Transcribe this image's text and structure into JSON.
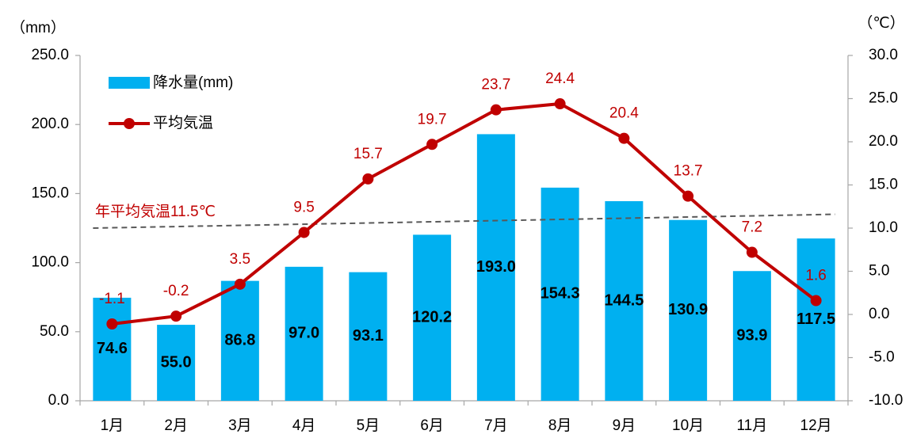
{
  "chart_data": {
    "type": "bar_line",
    "y_axis_label": "（mm）",
    "y2_axis_label": "（℃）",
    "categories": [
      "1月",
      "2月",
      "3月",
      "4月",
      "5月",
      "6月",
      "7月",
      "8月",
      "9月",
      "10月",
      "11月",
      "12月"
    ],
    "series": [
      {
        "name": "降水量(mm)",
        "type": "bar",
        "color": "#00b0f0",
        "axis": "y",
        "values": [
          74.6,
          55.0,
          86.8,
          97.0,
          93.1,
          120.2,
          193.0,
          154.3,
          144.5,
          130.9,
          93.9,
          117.5
        ],
        "value_labels": [
          "74.6",
          "55.0",
          "86.8",
          "97.0",
          "93.1",
          "120.2",
          "193.0",
          "154.3",
          "144.5",
          "130.9",
          "93.9",
          "117.5"
        ]
      },
      {
        "name": "平均気温",
        "type": "line",
        "color": "#c00000",
        "axis": "y2",
        "values": [
          -1.1,
          -0.2,
          3.5,
          9.5,
          15.7,
          19.7,
          23.7,
          24.4,
          20.4,
          13.7,
          7.2,
          1.6
        ],
        "value_labels": [
          "-1.1",
          "-0.2",
          "3.5",
          "9.5",
          "15.7",
          "19.7",
          "23.7",
          "24.4",
          "20.4",
          "13.7",
          "7.2",
          "1.6"
        ]
      }
    ],
    "reference_line": {
      "label": "年平均気温11.5℃",
      "axis": "y2",
      "start": 10.0,
      "end": 11.6,
      "color": "#595959"
    },
    "ylim": [
      0,
      250
    ],
    "yticks": [
      {
        "value": 0,
        "label": "0.0"
      },
      {
        "value": 50,
        "label": "50.0"
      },
      {
        "value": 100,
        "label": "100.0"
      },
      {
        "value": 150,
        "label": "150.0"
      },
      {
        "value": 200,
        "label": "200.0"
      },
      {
        "value": 250,
        "label": "250.0"
      }
    ],
    "y2lim": [
      -10,
      30
    ],
    "y2ticks": [
      {
        "value": -10,
        "label": "-10.0"
      },
      {
        "value": -5,
        "label": "-5.0"
      },
      {
        "value": 0,
        "label": "0.0"
      },
      {
        "value": 5,
        "label": "5.0"
      },
      {
        "value": 10,
        "label": "10.0"
      },
      {
        "value": 15,
        "label": "15.0"
      },
      {
        "value": 20,
        "label": "20.0"
      },
      {
        "value": 25,
        "label": "25.0"
      },
      {
        "value": 30,
        "label": "30.0"
      }
    ],
    "legend": "upper left",
    "grid": false
  }
}
